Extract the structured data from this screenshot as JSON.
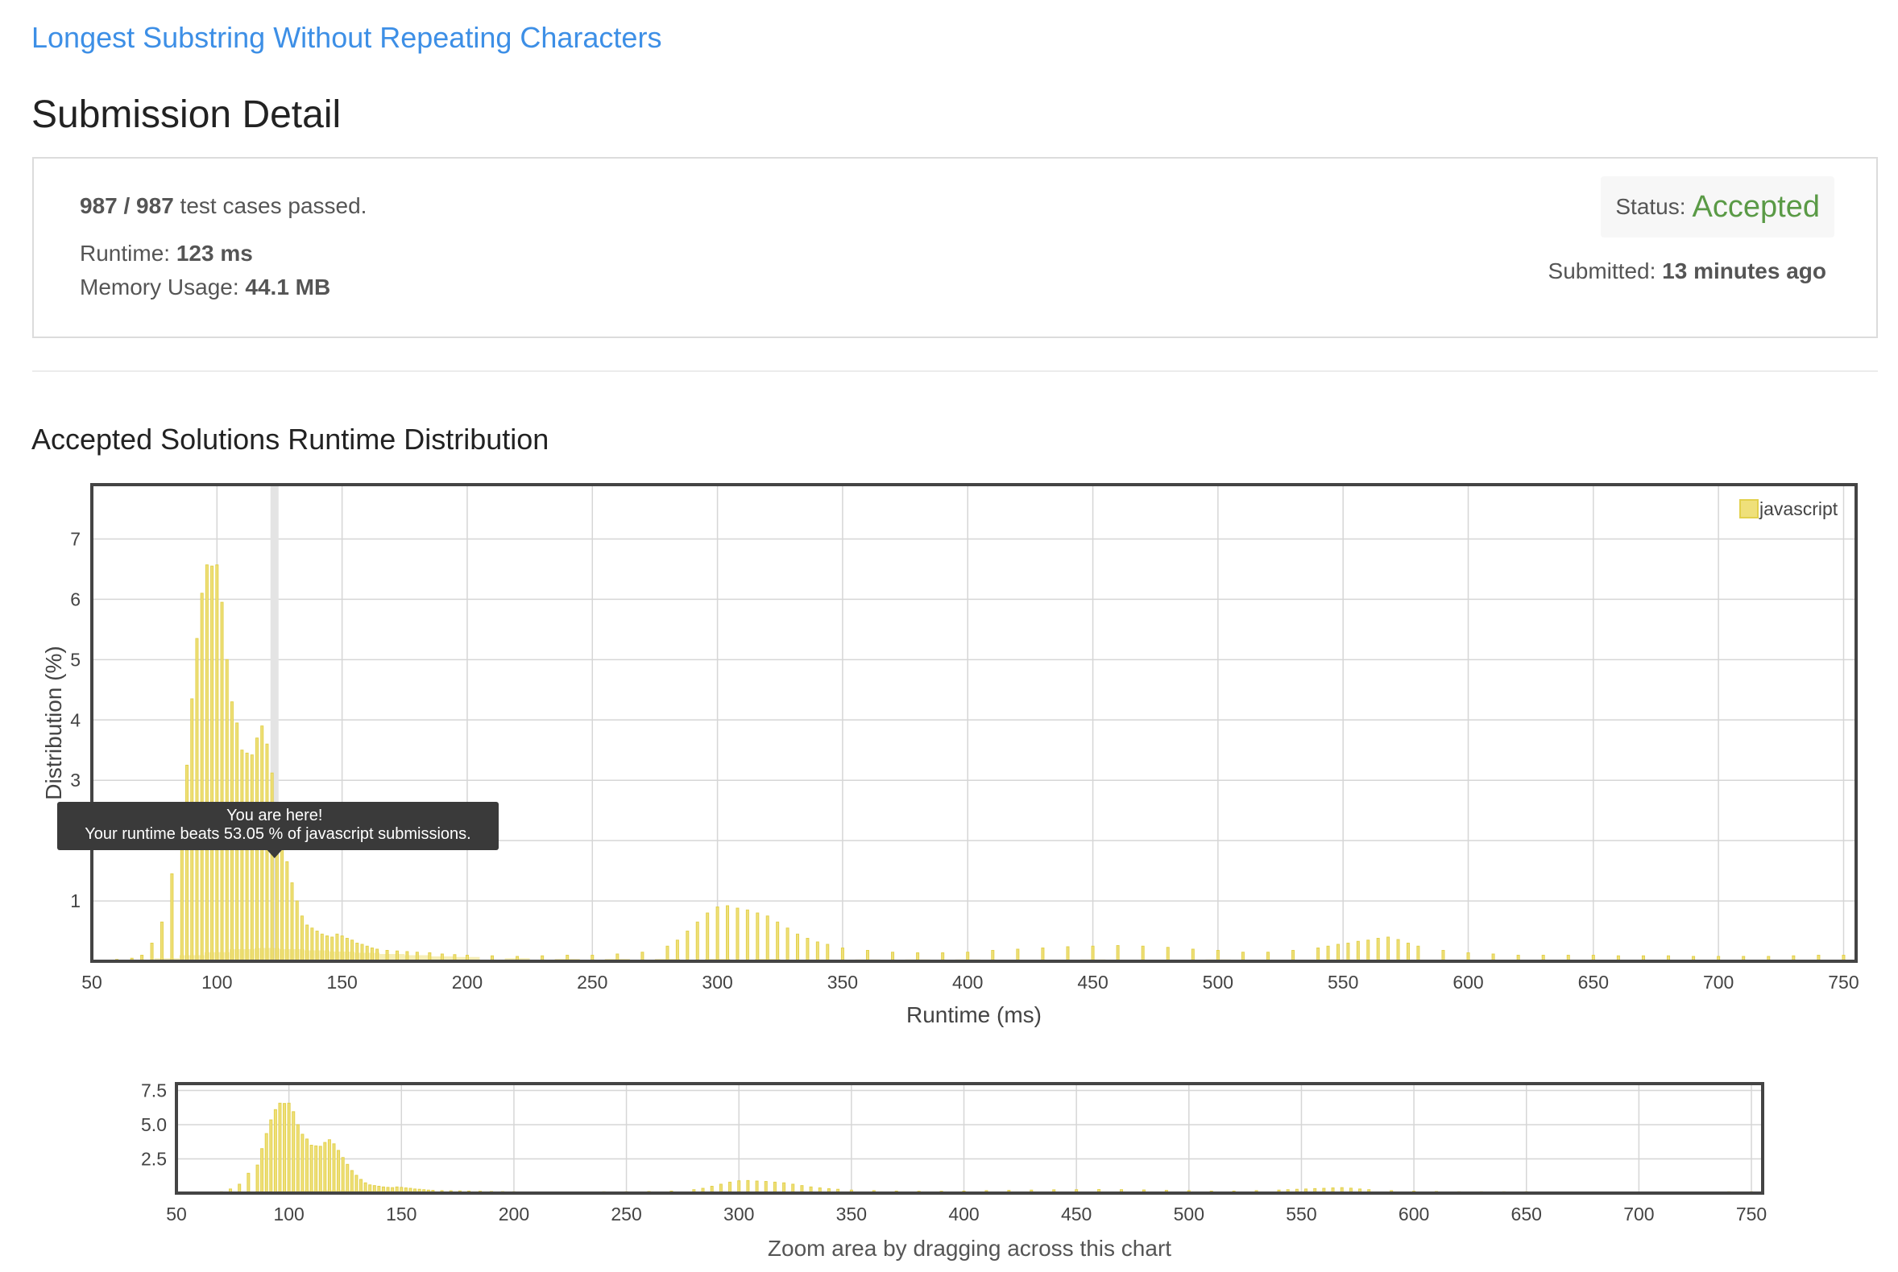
{
  "problem": {
    "title": "Longest Substring Without Repeating Characters"
  },
  "page": {
    "title": "Submission Detail"
  },
  "summary": {
    "passed": "987 / 987",
    "passed_suffix": " test cases passed.",
    "runtime_label": "Runtime: ",
    "runtime_value": "123 ms",
    "memory_label": "Memory Usage: ",
    "memory_value": "44.1 MB",
    "status_label": "Status:",
    "status_value": "Accepted",
    "submitted_label": "Submitted: ",
    "submitted_value": "13 minutes ago"
  },
  "colors": {
    "link": "#3d8fe6",
    "accepted": "#5a9a46",
    "bar_fill": "#efe07a",
    "bar_stroke": "#e2d04c",
    "tooltip_bg": "#3a3a3a"
  },
  "distribution": {
    "title": "Accepted Solutions Runtime Distribution"
  },
  "tooltip": {
    "line1": "You are here!",
    "line2": "Your runtime beats 53.05 % of javascript submissions."
  },
  "zoom": {
    "caption": "Zoom area by dragging across this chart"
  },
  "chart_data": {
    "type": "bar",
    "title": "",
    "xlabel": "Runtime (ms)",
    "ylabel": "Distribution (%)",
    "xlim": [
      50,
      755
    ],
    "ylim": [
      0,
      7.9
    ],
    "x_ticks": [
      50,
      100,
      150,
      200,
      250,
      300,
      350,
      400,
      450,
      500,
      550,
      600,
      650,
      700,
      750
    ],
    "y_ticks": [
      1,
      2,
      3,
      4,
      5,
      6,
      7
    ],
    "zoom_y_ticks": [
      2.5,
      5.0,
      7.5
    ],
    "zoom_ylim": [
      0,
      8.0
    ],
    "grid": true,
    "legend": "top-right",
    "highlight_x": 123,
    "series": [
      {
        "name": "javascript",
        "primary": {
          "x": [
            60,
            66,
            70,
            74,
            78,
            82,
            86,
            88,
            90,
            92,
            94,
            96,
            98,
            100,
            102,
            104,
            106,
            108,
            110,
            112,
            114,
            116,
            118,
            120,
            122,
            124,
            126,
            128,
            130,
            132,
            134,
            136,
            138,
            140,
            142,
            144,
            146,
            148,
            150,
            152,
            154,
            156,
            158,
            160,
            162,
            164,
            168,
            172,
            176,
            180,
            185,
            190,
            195,
            200,
            210,
            220,
            230,
            240,
            250,
            260,
            270,
            280,
            284,
            288,
            292,
            296,
            300,
            304,
            308,
            312,
            316,
            320,
            324,
            328,
            332,
            336,
            340,
            344,
            350,
            360,
            370,
            380,
            390,
            400,
            410,
            420,
            430,
            440,
            450,
            460,
            470,
            480,
            490,
            500,
            510,
            520,
            530,
            540,
            544,
            548,
            552,
            556,
            560,
            564,
            568,
            572,
            576,
            580,
            590,
            600,
            610,
            620,
            630,
            640,
            650,
            660,
            670,
            680,
            690,
            700,
            710,
            720,
            730,
            740,
            750
          ],
          "values": [
            0.03,
            0.05,
            0.1,
            0.3,
            0.65,
            1.45,
            2.05,
            3.25,
            4.35,
            5.35,
            6.1,
            6.57,
            6.55,
            6.57,
            5.95,
            5.0,
            4.3,
            3.95,
            3.5,
            3.45,
            3.42,
            3.7,
            3.9,
            3.6,
            3.12,
            2.6,
            2.1,
            1.65,
            1.3,
            1.0,
            0.75,
            0.6,
            0.55,
            0.5,
            0.45,
            0.42,
            0.4,
            0.45,
            0.42,
            0.38,
            0.35,
            0.3,
            0.28,
            0.25,
            0.22,
            0.2,
            0.18,
            0.17,
            0.16,
            0.15,
            0.14,
            0.12,
            0.11,
            0.1,
            0.09,
            0.08,
            0.09,
            0.1,
            0.1,
            0.12,
            0.15,
            0.25,
            0.35,
            0.5,
            0.65,
            0.8,
            0.9,
            0.92,
            0.88,
            0.85,
            0.8,
            0.75,
            0.65,
            0.55,
            0.45,
            0.38,
            0.32,
            0.28,
            0.22,
            0.18,
            0.15,
            0.14,
            0.14,
            0.15,
            0.18,
            0.2,
            0.22,
            0.24,
            0.25,
            0.26,
            0.25,
            0.23,
            0.2,
            0.18,
            0.15,
            0.15,
            0.18,
            0.22,
            0.25,
            0.28,
            0.3,
            0.33,
            0.35,
            0.38,
            0.4,
            0.36,
            0.3,
            0.25,
            0.18,
            0.14,
            0.12,
            0.1,
            0.1,
            0.1,
            0.1,
            0.09,
            0.09,
            0.09,
            0.08,
            0.08,
            0.08,
            0.08,
            0.09,
            0.1,
            0.1
          ]
        },
        "background": {
          "x": [
            80,
            90,
            100,
            110,
            120,
            130,
            140,
            150,
            160,
            170,
            180,
            190,
            200,
            220,
            240,
            260,
            280,
            300,
            320,
            340,
            360,
            380,
            400,
            450,
            500,
            550,
            600,
            650,
            700,
            750
          ],
          "values": [
            0.05,
            0.1,
            0.15,
            0.2,
            0.22,
            0.2,
            0.18,
            0.16,
            0.14,
            0.12,
            0.1,
            0.08,
            0.07,
            0.05,
            0.04,
            0.04,
            0.04,
            0.04,
            0.04,
            0.03,
            0.03,
            0.03,
            0.03,
            0.03,
            0.03,
            0.03,
            0.02,
            0.02,
            0.02,
            0.02
          ]
        }
      }
    ]
  }
}
